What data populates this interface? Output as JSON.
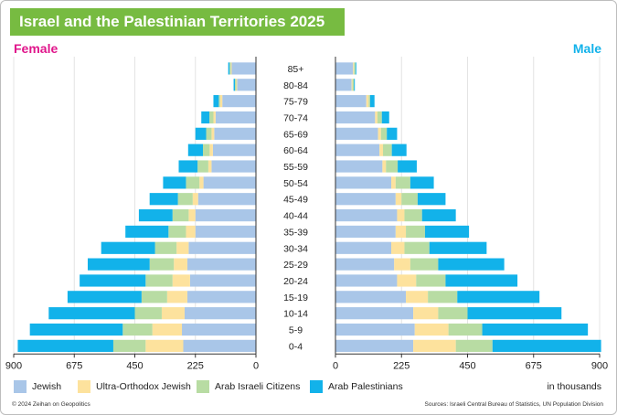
{
  "header": {
    "title": "Israel and the Palestinian Territories 2025"
  },
  "colors": {
    "jewish": "#a9c6e8",
    "ultra_orthodox": "#fde29d",
    "arab_israeli": "#b8dca3",
    "arab_palestinian": "#12b2ea",
    "female_label": "#e0168b",
    "male_label": "#12b2ea",
    "title_bg": "#77bb41"
  },
  "chart_data": {
    "type": "population_pyramid",
    "title": "Israel and the Palestinian Territories 2025",
    "left_label": "Female",
    "right_label": "Male",
    "unit_label": "in thousands",
    "xlim": [
      0,
      900
    ],
    "ticks_left": [
      "900",
      "675",
      "450",
      "225",
      "0"
    ],
    "ticks_right": [
      "0",
      "225",
      "450",
      "675",
      "900"
    ],
    "tick_values": [
      0,
      225,
      450,
      675,
      900
    ],
    "categories": [
      "85+",
      "80-84",
      "75-79",
      "70-74",
      "65-69",
      "60-64",
      "55-59",
      "50-54",
      "45-49",
      "40-44",
      "35-39",
      "30-34",
      "25-29",
      "20-24",
      "15-19",
      "10-14",
      "5-9",
      "0-4"
    ],
    "series_order": [
      "jewish",
      "ultra_orthodox",
      "arab_israeli",
      "arab_palestinian"
    ],
    "legend": [
      {
        "key": "jewish",
        "label": "Jewish"
      },
      {
        "key": "ultra_orthodox",
        "label": "Ultra-Orthodox Jewish"
      },
      {
        "key": "arab_israeli",
        "label": "Arab Israeli Citizens"
      },
      {
        "key": "arab_palestinian",
        "label": "Arab Palestinians"
      }
    ],
    "female": {
      "jewish": [
        90,
        70,
        125,
        150,
        155,
        160,
        165,
        195,
        215,
        225,
        225,
        250,
        255,
        245,
        255,
        265,
        275,
        270
      ],
      "ultra_orthodox": [
        3,
        3,
        8,
        8,
        10,
        12,
        12,
        15,
        20,
        25,
        35,
        45,
        50,
        65,
        75,
        85,
        110,
        140
      ],
      "arab_israeli": [
        5,
        5,
        5,
        15,
        20,
        25,
        40,
        50,
        55,
        60,
        65,
        80,
        90,
        100,
        95,
        100,
        110,
        120
      ],
      "arab_palestinian": [
        5,
        5,
        20,
        30,
        40,
        55,
        70,
        85,
        105,
        125,
        160,
        200,
        230,
        245,
        275,
        320,
        345,
        355
      ]
    },
    "male": {
      "jewish": [
        60,
        55,
        105,
        135,
        145,
        150,
        160,
        190,
        205,
        210,
        205,
        190,
        200,
        210,
        240,
        265,
        270,
        265
      ],
      "ultra_orthodox": [
        3,
        3,
        8,
        8,
        10,
        12,
        12,
        15,
        20,
        25,
        35,
        45,
        55,
        65,
        75,
        85,
        115,
        145
      ],
      "arab_israeli": [
        5,
        5,
        5,
        15,
        20,
        30,
        40,
        50,
        55,
        60,
        65,
        85,
        95,
        100,
        100,
        100,
        115,
        125
      ],
      "arab_palestinian": [
        3,
        3,
        15,
        25,
        35,
        50,
        65,
        80,
        95,
        115,
        150,
        195,
        225,
        245,
        280,
        320,
        360,
        370
      ]
    }
  },
  "footer": {
    "copyright": "© 2024 Zeihan on Geopolitics",
    "sources": "Sources: Israeli Central Bureau of Statistics, UN Population Division"
  }
}
